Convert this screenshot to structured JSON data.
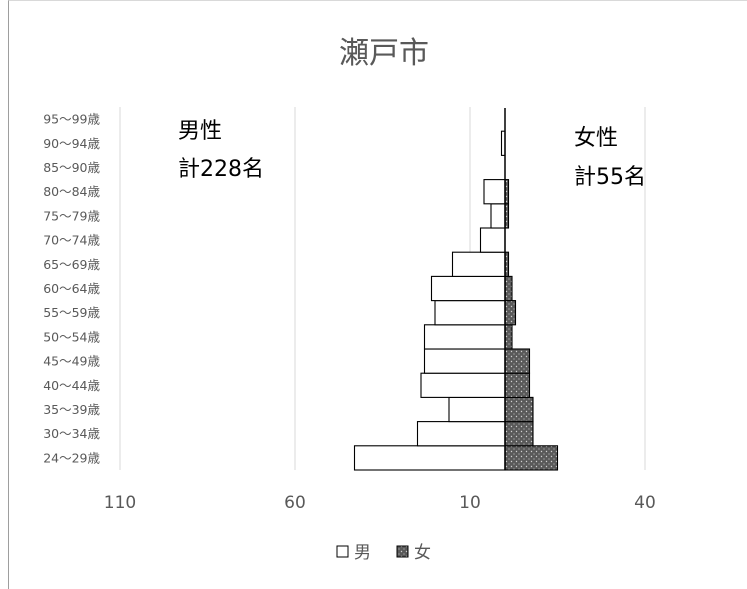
{
  "chart_data": {
    "type": "bar",
    "title": "瀬戸市",
    "categories": [
      "24〜29歳",
      "30〜34歳",
      "35〜39歳",
      "40〜44歳",
      "45〜49歳",
      "50〜54歳",
      "55〜59歳",
      "60〜64歳",
      "65〜69歳",
      "70〜74歳",
      "75〜79歳",
      "80〜84歳",
      "85〜90歳",
      "90〜94歳",
      "95〜99歳"
    ],
    "x_ticks": [
      "110",
      "60",
      "10",
      "40"
    ],
    "series": [
      {
        "name": "男",
        "values": [
          43,
          25,
          16,
          24,
          23,
          23,
          20,
          21,
          15,
          7,
          4,
          6,
          0,
          1,
          0
        ],
        "fill": "#ffffff",
        "stroke": "#000000"
      },
      {
        "name": "女",
        "values": [
          15,
          8,
          8,
          7,
          7,
          2,
          3,
          2,
          1,
          0,
          1,
          1,
          0,
          0,
          0
        ],
        "fill": "#595959",
        "pattern": "dotted",
        "stroke": "#000000"
      }
    ],
    "annotations": {
      "male": {
        "line1": "男性",
        "line2": "計228名"
      },
      "female": {
        "line1": "女性",
        "line2": "計55名"
      }
    },
    "grid": true,
    "legend": "bottom"
  }
}
